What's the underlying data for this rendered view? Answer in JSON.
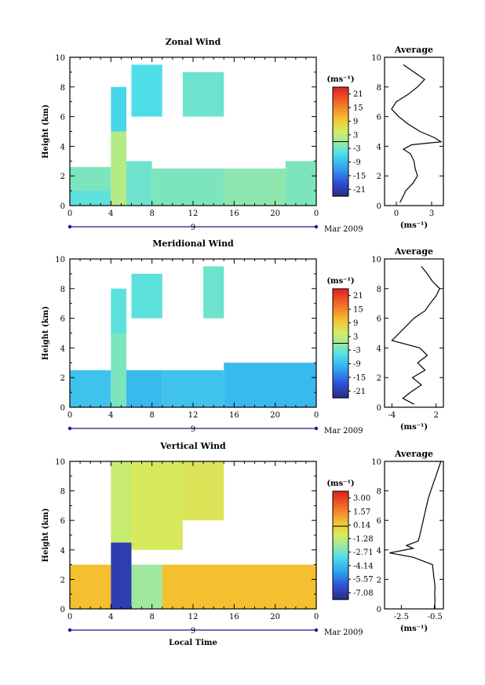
{
  "chart_data": [
    {
      "type": "heatmap",
      "title": "Zonal Wind",
      "ylabel": "Height (km)",
      "xlabel": "",
      "x_ticks": [
        "0",
        "4",
        "8",
        "12",
        "16",
        "20",
        "0"
      ],
      "y_ticks": [
        "0",
        "2",
        "4",
        "6",
        "8",
        "10"
      ],
      "xlim": [
        0,
        24
      ],
      "ylim": [
        0,
        10
      ],
      "date_marker": "9",
      "date_label": "Mar 2009",
      "colorbar": {
        "unit": "(ms⁻¹)",
        "ticks": [
          "-21",
          "-15",
          "-9",
          "-3",
          "3",
          "9",
          "15",
          "21"
        ],
        "range": [
          -24,
          24
        ]
      },
      "cells": [
        {
          "t0": 0,
          "t1": 4,
          "z0": 0,
          "z1": 1,
          "v": -4
        },
        {
          "t0": 0,
          "t1": 4,
          "z0": 1,
          "z1": 2.6,
          "v": -2
        },
        {
          "t0": 4,
          "t1": 5.5,
          "z0": 0,
          "z1": 5,
          "v": 2
        },
        {
          "t0": 4,
          "t1": 5.5,
          "z0": 5,
          "z1": 8,
          "v": -6
        },
        {
          "t0": 5.5,
          "t1": 8,
          "z0": 0,
          "z1": 3,
          "v": -3
        },
        {
          "t0": 6,
          "t1": 9,
          "z0": 6,
          "z1": 9.5,
          "v": -5
        },
        {
          "t0": 8,
          "t1": 15,
          "z0": 0,
          "z1": 2.5,
          "v": -2
        },
        {
          "t0": 11,
          "t1": 15,
          "z0": 6,
          "z1": 9,
          "v": -3
        },
        {
          "t0": 15,
          "t1": 21,
          "z0": 0,
          "z1": 2.5,
          "v": -1
        },
        {
          "t0": 21,
          "t1": 24,
          "z0": 0,
          "z1": 3,
          "v": -2
        }
      ],
      "average_profile": {
        "title": "Average",
        "unit_label": "(ms⁻¹)",
        "x_ticks": [
          "0",
          "3"
        ],
        "xlim": [
          -1,
          4
        ],
        "z": [
          0.2,
          0.5,
          1,
          1.5,
          2,
          2.5,
          3,
          3.5,
          3.8,
          4.1,
          4.3,
          4.6,
          5,
          5.5,
          6,
          6.5,
          7,
          7.5,
          8,
          8.5,
          9,
          9.5
        ],
        "v": [
          0.3,
          0.5,
          0.8,
          1.4,
          1.8,
          1.6,
          1.5,
          1.2,
          0.6,
          1.3,
          3.8,
          3.2,
          2.0,
          1.0,
          0.2,
          -0.4,
          0.0,
          1.0,
          1.8,
          2.4,
          1.5,
          0.6
        ]
      }
    },
    {
      "type": "heatmap",
      "title": "Meridional Wind",
      "ylabel": "Height (km)",
      "xlabel": "",
      "x_ticks": [
        "0",
        "4",
        "8",
        "12",
        "16",
        "20",
        "0"
      ],
      "y_ticks": [
        "0",
        "2",
        "4",
        "6",
        "8",
        "10"
      ],
      "xlim": [
        0,
        24
      ],
      "ylim": [
        0,
        10
      ],
      "date_marker": "9",
      "date_label": "Mar 2009",
      "colorbar": {
        "unit": "(ms⁻¹)",
        "ticks": [
          "-21",
          "-15",
          "-9",
          "-3",
          "3",
          "9",
          "15",
          "21"
        ],
        "range": [
          -24,
          24
        ]
      },
      "cells": [
        {
          "t0": 0,
          "t1": 4,
          "z0": 0,
          "z1": 2.5,
          "v": -8
        },
        {
          "t0": 4,
          "t1": 5.5,
          "z0": 0,
          "z1": 5,
          "v": -2
        },
        {
          "t0": 4,
          "t1": 5.5,
          "z0": 5,
          "z1": 8,
          "v": -4
        },
        {
          "t0": 5.5,
          "t1": 9,
          "z0": 0,
          "z1": 2.5,
          "v": -9
        },
        {
          "t0": 6,
          "t1": 9,
          "z0": 6,
          "z1": 9,
          "v": -4
        },
        {
          "t0": 9,
          "t1": 15,
          "z0": 0,
          "z1": 2.5,
          "v": -8
        },
        {
          "t0": 13,
          "t1": 15,
          "z0": 6,
          "z1": 9.5,
          "v": -3
        },
        {
          "t0": 15,
          "t1": 24,
          "z0": 0,
          "z1": 3,
          "v": -9
        }
      ],
      "average_profile": {
        "title": "Average",
        "unit_label": "(ms⁻¹)",
        "x_ticks": [
          "-4",
          "2"
        ],
        "xlim": [
          -5,
          3
        ],
        "z": [
          0.2,
          0.6,
          1,
          1.5,
          2,
          2.5,
          3,
          3.5,
          4,
          4.5,
          5,
          5.5,
          6,
          6.5,
          7,
          7.5,
          8,
          8.5,
          9,
          9.5
        ],
        "v": [
          -1.0,
          -2.5,
          -1.5,
          0.0,
          -1.2,
          0.5,
          -0.5,
          0.8,
          -0.2,
          -4.0,
          -3.0,
          -2.0,
          -1.0,
          0.5,
          1.2,
          2.0,
          2.5,
          1.5,
          0.8,
          0.0
        ]
      }
    },
    {
      "type": "heatmap",
      "title": "Vertical Wind",
      "ylabel": "Height (km)",
      "xlabel": "Local Time",
      "x_ticks": [
        "0",
        "4",
        "8",
        "12",
        "16",
        "20",
        "0"
      ],
      "y_ticks": [
        "0",
        "2",
        "4",
        "6",
        "8",
        "10"
      ],
      "xlim": [
        0,
        24
      ],
      "ylim": [
        0,
        10
      ],
      "date_marker": "9",
      "date_label": "Mar 2009",
      "colorbar": {
        "unit": "(ms⁻¹)",
        "ticks": [
          "-7.08",
          "-5.57",
          "-4.14",
          "-2.71",
          "-1.28",
          "0.14",
          "1.57",
          "3.00"
        ],
        "range": [
          -7.85,
          3.75
        ]
      },
      "cells": [
        {
          "t0": 0,
          "t1": 4,
          "z0": 0,
          "z1": 3,
          "v": 0.5
        },
        {
          "t0": 4,
          "t1": 6,
          "z0": 0,
          "z1": 4.5,
          "v": -7.0
        },
        {
          "t0": 4,
          "t1": 6,
          "z0": 4.5,
          "z1": 10,
          "v": -1.2
        },
        {
          "t0": 6,
          "t1": 9,
          "z0": 0,
          "z1": 3,
          "v": -2.0
        },
        {
          "t0": 6,
          "t1": 11,
          "z0": 4,
          "z1": 10,
          "v": -0.8
        },
        {
          "t0": 9,
          "t1": 24,
          "z0": 0,
          "z1": 3,
          "v": 0.5
        },
        {
          "t0": 11,
          "t1": 15,
          "z0": 6,
          "z1": 10,
          "v": -0.6
        }
      ],
      "average_profile": {
        "title": "Average",
        "unit_label": "(ms⁻¹)",
        "x_ticks": [
          "-2.5",
          "-0.5"
        ],
        "xlim": [
          -3.5,
          0
        ],
        "z": [
          0,
          0.5,
          1,
          1.5,
          2,
          2.5,
          3,
          3.5,
          3.8,
          4.1,
          4.3,
          4.6,
          5,
          5.5,
          6,
          6.5,
          7,
          7.5,
          8,
          8.5,
          9,
          9.5,
          10
        ],
        "v": [
          -0.55,
          -0.5,
          -0.52,
          -0.5,
          -0.55,
          -0.6,
          -0.65,
          -1.8,
          -3.2,
          -1.8,
          -2.2,
          -1.5,
          -1.4,
          -1.3,
          -1.2,
          -1.1,
          -1.0,
          -0.9,
          -0.75,
          -0.6,
          -0.45,
          -0.3,
          -0.15
        ]
      }
    }
  ]
}
